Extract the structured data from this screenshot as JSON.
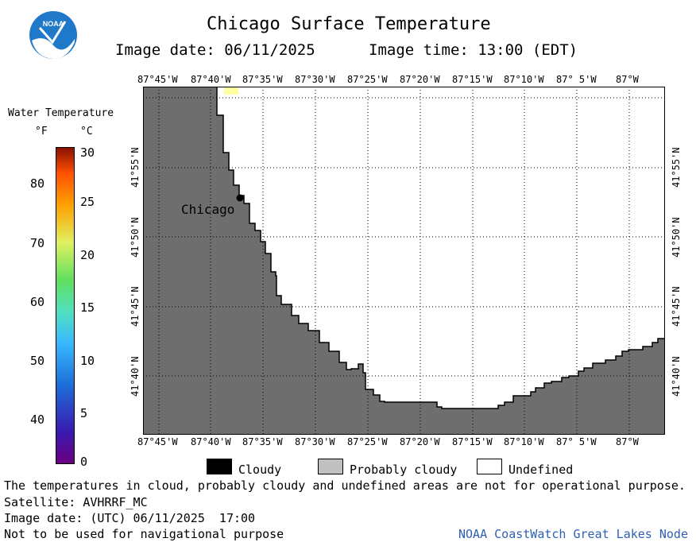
{
  "header": {
    "title": "Chicago Surface Temperature",
    "image_date": "Image date: 06/11/2025",
    "image_time": "Image time: 13:00 (EDT)"
  },
  "logo": {
    "text": "NOAA"
  },
  "colorbar": {
    "title": "Water Temperature",
    "unit_f": "°F",
    "unit_c": "°C",
    "f_ticks": [
      "80",
      "70",
      "60",
      "50",
      "40"
    ],
    "c_ticks": [
      "30",
      "25",
      "20",
      "15",
      "10",
      "5",
      "0"
    ]
  },
  "map": {
    "lon_labels": [
      "87°45'W",
      "87°40'W",
      "87°35'W",
      "87°30'W",
      "87°25'W",
      "87°20'W",
      "87°15'W",
      "87°10'W",
      "87° 5'W",
      "87°W"
    ],
    "lat_labels": [
      "41°55'N",
      "41°50'N",
      "41°45'N",
      "41°40'N"
    ],
    "city": "Chicago",
    "colors": {
      "land": "#6e6e6e",
      "water": "#ffffff",
      "warm_pixel": "#ffffa0",
      "grid": "#000000"
    }
  },
  "legend": {
    "cloudy": "Cloudy",
    "probably_cloudy": "Probably cloudy",
    "undefined": "Undefined",
    "colors": {
      "cloudy": "#000000",
      "probably_cloudy": "#c0c0c0",
      "undefined": "#ffffff"
    }
  },
  "footer": {
    "note": "The temperatures in cloud, probably cloudy and undefined areas are not for operational purpose.",
    "satellite": "Satellite: AVHRRF_MC",
    "utc_date": "Image date: (UTC) 06/11/2025  17:00",
    "nav_warning": "Not to be used for navigational purpose",
    "credit": "NOAA CoastWatch Great Lakes Node"
  }
}
